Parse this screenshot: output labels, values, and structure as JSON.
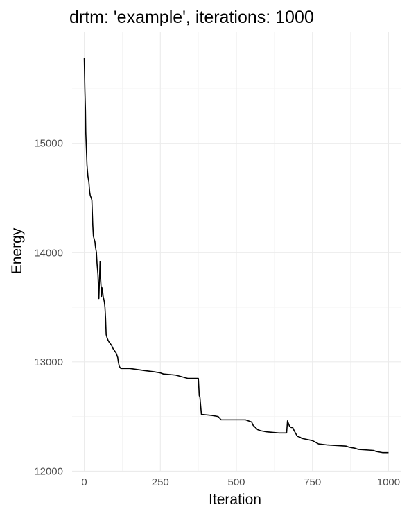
{
  "chart_data": {
    "type": "line",
    "title": "drtm: 'example', iterations: 1000",
    "xlabel": "Iteration",
    "ylabel": "Energy",
    "xlim": [
      -40,
      1040
    ],
    "ylim": [
      11990,
      16020
    ],
    "x_ticks": [
      0,
      250,
      500,
      750,
      1000
    ],
    "y_ticks": [
      12000,
      13000,
      14000,
      15000
    ],
    "grid": true,
    "legend": "none",
    "colors": {
      "line": "#000000",
      "grid": "#ebebeb",
      "tick_text": "#4d4d4d"
    },
    "series": [
      {
        "x": [
          0,
          2,
          4,
          5,
          7,
          9,
          12,
          15,
          18,
          20,
          23,
          25,
          28,
          30,
          35,
          37,
          40,
          42,
          45,
          48,
          52,
          54,
          55,
          56,
          57,
          58,
          60,
          62,
          66,
          68,
          70,
          72,
          75,
          78,
          82,
          85,
          90,
          95,
          100,
          105,
          110,
          112,
          115,
          120,
          125,
          130,
          135,
          150,
          200,
          230,
          250,
          260,
          300,
          340,
          345,
          350,
          370,
          375,
          378,
          380,
          385,
          420,
          440,
          450,
          500,
          530,
          550,
          555,
          570,
          580,
          600,
          640,
          660,
          665,
          668,
          672,
          675,
          680,
          685,
          690,
          700,
          710,
          715,
          750,
          770,
          800,
          860,
          870,
          890,
          900,
          950,
          960,
          980,
          1000
        ],
        "values": [
          15780,
          15500,
          15300,
          15100,
          14950,
          14800,
          14700,
          14650,
          14550,
          14520,
          14500,
          14480,
          14250,
          14150,
          14100,
          14050,
          14000,
          13900,
          13800,
          13580,
          13920,
          13750,
          13700,
          13650,
          13600,
          13680,
          13660,
          13600,
          13550,
          13500,
          13400,
          13250,
          13220,
          13200,
          13180,
          13170,
          13150,
          13120,
          13100,
          13080,
          13040,
          13000,
          12960,
          12940,
          12940,
          12940,
          12940,
          12940,
          12920,
          12910,
          12900,
          12890,
          12880,
          12850,
          12850,
          12850,
          12850,
          12850,
          12690,
          12680,
          12520,
          12510,
          12500,
          12470,
          12470,
          12470,
          12450,
          12420,
          12380,
          12370,
          12360,
          12350,
          12350,
          12350,
          12460,
          12430,
          12410,
          12400,
          12400,
          12370,
          12320,
          12310,
          12300,
          12280,
          12250,
          12240,
          12230,
          12220,
          12210,
          12200,
          12190,
          12180,
          12170,
          12170
        ]
      }
    ]
  }
}
